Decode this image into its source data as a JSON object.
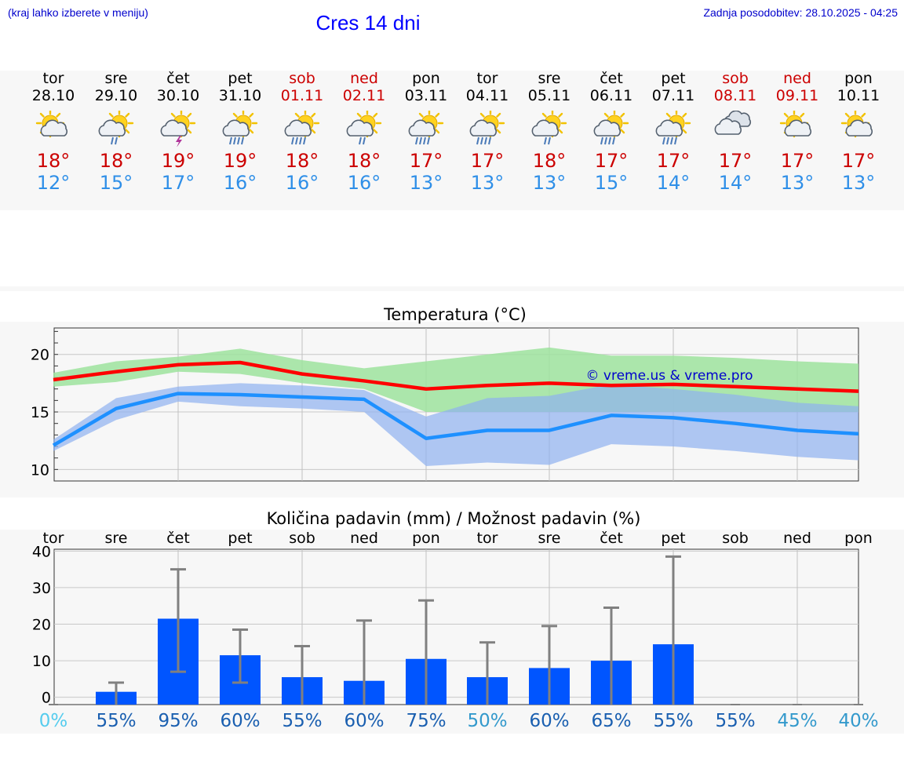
{
  "header": {
    "menu_hint": "(kraj lahko izberete v meniju)",
    "title": "Cres 14 dni",
    "last_update": "Zadnja posodobitev: 28.10.2025 - 04:25"
  },
  "days": [
    {
      "name": "tor",
      "date": "28.10",
      "weekend": false,
      "icon": "sun-cloud-icon",
      "tmax": "18°",
      "tmin": "12°"
    },
    {
      "name": "sre",
      "date": "29.10",
      "weekend": false,
      "icon": "sun-cloud-rain-icon",
      "tmax": "18°",
      "tmin": "15°"
    },
    {
      "name": "čet",
      "date": "30.10",
      "weekend": false,
      "icon": "sun-thunderstorm-icon",
      "tmax": "19°",
      "tmin": "17°"
    },
    {
      "name": "pet",
      "date": "31.10",
      "weekend": false,
      "icon": "sun-cloud-heavy-rain-icon",
      "tmax": "19°",
      "tmin": "16°"
    },
    {
      "name": "sob",
      "date": "01.11",
      "weekend": true,
      "icon": "sun-cloud-heavy-rain-icon",
      "tmax": "18°",
      "tmin": "16°"
    },
    {
      "name": "ned",
      "date": "02.11",
      "weekend": true,
      "icon": "sun-cloud-rain-icon",
      "tmax": "18°",
      "tmin": "16°"
    },
    {
      "name": "pon",
      "date": "03.11",
      "weekend": false,
      "icon": "sun-cloud-heavy-rain-icon",
      "tmax": "17°",
      "tmin": "13°"
    },
    {
      "name": "tor",
      "date": "04.11",
      "weekend": false,
      "icon": "sun-cloud-heavy-rain-icon",
      "tmax": "17°",
      "tmin": "13°"
    },
    {
      "name": "sre",
      "date": "05.11",
      "weekend": false,
      "icon": "sun-cloud-rain-icon",
      "tmax": "18°",
      "tmin": "13°"
    },
    {
      "name": "čet",
      "date": "06.11",
      "weekend": false,
      "icon": "sun-cloud-heavy-rain-icon",
      "tmax": "17°",
      "tmin": "15°"
    },
    {
      "name": "pet",
      "date": "07.11",
      "weekend": false,
      "icon": "sun-cloud-heavy-rain-icon",
      "tmax": "17°",
      "tmin": "14°"
    },
    {
      "name": "sob",
      "date": "08.11",
      "weekend": true,
      "icon": "cloudy-icon",
      "tmax": "17°",
      "tmin": "14°"
    },
    {
      "name": "ned",
      "date": "09.11",
      "weekend": true,
      "icon": "sun-cloud-icon",
      "tmax": "17°",
      "tmin": "13°"
    },
    {
      "name": "pon",
      "date": "10.11",
      "weekend": false,
      "icon": "sun-cloud-icon",
      "tmax": "17°",
      "tmin": "13°"
    }
  ],
  "colors": {
    "max_line": "#ff0000",
    "min_line": "#1e90ff",
    "max_band": "#9ee39e",
    "min_band": "#8fb0f0",
    "bar": "#0055ff",
    "whisker": "#808080",
    "weekend": "#cc0000",
    "tmin_text": "#2f8fe8",
    "watermark": "#0000cc"
  },
  "chart_data": [
    {
      "type": "line",
      "title": "Temperatura (°C)",
      "watermark": "© vreme.us & vreme.pro",
      "ylim": [
        9,
        22.3
      ],
      "yticks": [
        10,
        15,
        20
      ],
      "grid": true,
      "x": [
        0,
        1,
        2,
        3,
        4,
        5,
        6,
        7,
        8,
        9,
        10,
        11,
        12,
        13
      ],
      "series": [
        {
          "role": "max",
          "values": [
            17.8,
            18.5,
            19.1,
            19.3,
            18.3,
            17.7,
            17.0,
            17.3,
            17.5,
            17.3,
            17.4,
            17.2,
            17.0,
            16.8
          ]
        },
        {
          "role": "max-range",
          "low": [
            17.2,
            17.6,
            18.5,
            18.3,
            17.5,
            17.0,
            15.0,
            15.0,
            15.0,
            15.0,
            15.0,
            15.0,
            15.0,
            15.0
          ],
          "high": [
            18.4,
            19.4,
            19.8,
            20.5,
            19.5,
            18.8,
            19.4,
            20.0,
            20.6,
            19.9,
            19.9,
            19.7,
            19.4,
            19.2
          ]
        },
        {
          "role": "min",
          "values": [
            12.1,
            15.3,
            16.6,
            16.5,
            16.3,
            16.1,
            12.7,
            13.4,
            13.4,
            14.7,
            14.5,
            14.0,
            13.4,
            13.1
          ]
        },
        {
          "role": "min-range",
          "low": [
            11.6,
            14.3,
            15.9,
            15.5,
            15.3,
            15.0,
            10.3,
            10.6,
            10.4,
            12.2,
            12.0,
            11.6,
            11.1,
            10.8
          ]
        },
        {
          "role": "min-range-high",
          "high": [
            12.6,
            16.2,
            17.2,
            17.5,
            17.3,
            16.9,
            14.6,
            16.2,
            16.4,
            17.4,
            17.0,
            16.5,
            15.8,
            15.5
          ]
        }
      ]
    },
    {
      "type": "bar",
      "title": "Količina padavin (mm) / Možnost padavin (%)",
      "ylim": [
        -2,
        40.5
      ],
      "yticks": [
        0,
        10,
        20,
        30,
        40
      ],
      "grid": true,
      "categories": [
        "tor",
        "sre",
        "čet",
        "pet",
        "sob",
        "ned",
        "pon",
        "tor",
        "sre",
        "čet",
        "pet",
        "sob",
        "ned",
        "pon"
      ],
      "values": [
        0,
        1.5,
        21.5,
        11.5,
        5.5,
        4.5,
        10.5,
        5.5,
        8,
        10,
        14.5,
        0,
        0,
        0
      ],
      "error_low": [
        0,
        0,
        7,
        4,
        0,
        0,
        0,
        0,
        0,
        0,
        0,
        0,
        0,
        0
      ],
      "error_high": [
        0,
        4,
        35,
        18.5,
        14,
        21,
        26.5,
        15,
        19.5,
        24.5,
        38.5,
        0,
        0,
        0
      ],
      "chance": [
        "0%",
        "55%",
        "95%",
        "60%",
        "55%",
        "60%",
        "75%",
        "50%",
        "60%",
        "65%",
        "55%",
        "55%",
        "45%",
        "40%"
      ],
      "chance_colors": [
        "#55ccee",
        "#1a5fb0",
        "#1a5fb0",
        "#1a5fb0",
        "#1a5fb0",
        "#1a5fb0",
        "#1a5fb0",
        "#3399cc",
        "#1a5fb0",
        "#1a5fb0",
        "#1a5fb0",
        "#1a5fb0",
        "#3399cc",
        "#3399cc"
      ]
    }
  ]
}
